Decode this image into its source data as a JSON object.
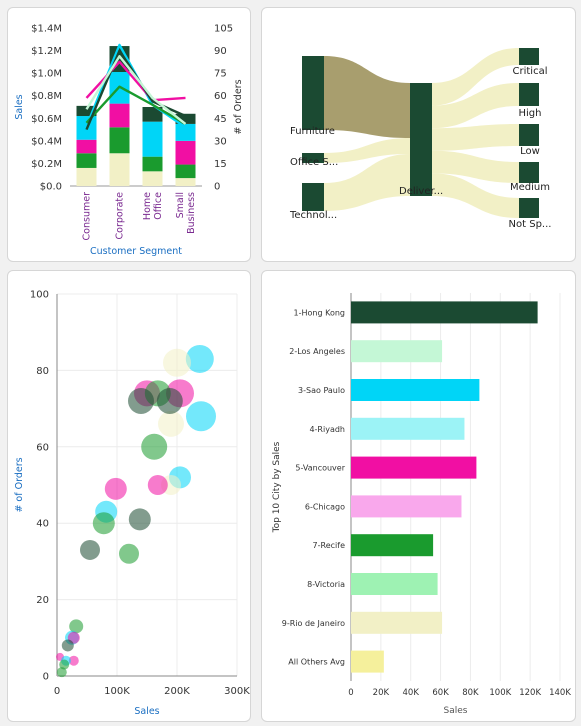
{
  "colors": {
    "dark_green": "#1b4a32",
    "green": "#1a9b2e",
    "mint": "#9ef2b3",
    "light_mint": "#c4f7d6",
    "cyan": "#00d5f7",
    "light_cyan": "#9cf3f6",
    "magenta": "#f10fa3",
    "pink": "#f9a8ec",
    "cream": "#f2f0c6",
    "yellow": "#f5f09c",
    "axis_blue": "#1b6fc2",
    "purple": "#7a2a90",
    "sankey_tan": "#a89e6e"
  },
  "chart_data": [
    {
      "type": "bar",
      "subtype": "stacked-bar-with-lines",
      "xlabel": "Customer Segment",
      "ylabel": "Sales",
      "y2label": "# of Orders",
      "categories": [
        "Consumer",
        "Corporate",
        "Home Office",
        "Small Business"
      ],
      "ylim": [
        0,
        1.4
      ],
      "yticks": [
        "$0.0",
        "$0.2M",
        "$0.4M",
        "$0.6M",
        "$0.8M",
        "$1.0M",
        "$1.2M",
        "$1.4M"
      ],
      "y2lim": [
        0,
        105
      ],
      "y2ticks": [
        "0",
        "15",
        "30",
        "45",
        "60",
        "75",
        "90",
        "105"
      ],
      "stack_colors": [
        "#f2f0c6",
        "#1a9b2e",
        "#f10fa3",
        "#00d5f7",
        "#1b4a32"
      ],
      "stacks": [
        [
          0.16,
          0.13,
          0.12,
          0.21,
          0.09
        ],
        [
          0.29,
          0.23,
          0.21,
          0.28,
          0.23
        ],
        [
          0.13,
          0.13,
          0.0,
          0.31,
          0.13
        ],
        [
          0.07,
          0.12,
          0.21,
          0.15,
          0.09
        ]
      ],
      "series": [
        {
          "color": "#00d5f7",
          "values": [
            0.53,
            1.25,
            0.72,
            0.52
          ]
        },
        {
          "color": "#f10fa3",
          "values": [
            0.78,
            1.1,
            0.76,
            0.78
          ]
        },
        {
          "color": "#1a9b2e",
          "values": [
            0.56,
            0.88,
            0.72,
            0.55
          ]
        },
        {
          "color": "#1b4a32",
          "values": [
            0.5,
            1.2,
            0.75,
            0.62
          ]
        },
        {
          "color": "#c4f7d6",
          "values": [
            0.68,
            1.15,
            0.78,
            0.55
          ]
        }
      ]
    },
    {
      "type": "sankey",
      "nodes_left": [
        "Furniture",
        "Office S...",
        "Technol..."
      ],
      "node_middle": "Deliver...",
      "nodes_right": [
        "Critical",
        "High",
        "Low",
        "Medium",
        "Not Sp..."
      ]
    },
    {
      "type": "scatter",
      "xlabel": "Sales",
      "ylabel": "# of Orders",
      "xlim": [
        0,
        300000
      ],
      "ylim": [
        0,
        100
      ],
      "xticks": [
        "0",
        "100K",
        "200K",
        "300K"
      ],
      "yticks": [
        "0",
        "20",
        "40",
        "60",
        "80",
        "100"
      ],
      "points": [
        {
          "x": 238000,
          "y": 83,
          "r": 14,
          "color": "#00d5f7"
        },
        {
          "x": 200000,
          "y": 82,
          "r": 14,
          "color": "#f2f0c6"
        },
        {
          "x": 240000,
          "y": 68,
          "r": 15,
          "color": "#00d5f7"
        },
        {
          "x": 190000,
          "y": 66,
          "r": 13,
          "color": "#f2f0c6"
        },
        {
          "x": 150000,
          "y": 74,
          "r": 13,
          "color": "#f10fa3"
        },
        {
          "x": 205000,
          "y": 74,
          "r": 14,
          "color": "#f10fa3"
        },
        {
          "x": 168000,
          "y": 74,
          "r": 13,
          "color": "#1a9b2e"
        },
        {
          "x": 140000,
          "y": 72,
          "r": 13,
          "color": "#1b4a32"
        },
        {
          "x": 188000,
          "y": 72,
          "r": 13,
          "color": "#1b4a32"
        },
        {
          "x": 162000,
          "y": 60,
          "r": 13,
          "color": "#1a9b2e"
        },
        {
          "x": 205000,
          "y": 52,
          "r": 11,
          "color": "#00d5f7"
        },
        {
          "x": 190000,
          "y": 50,
          "r": 10,
          "color": "#f2f0c6"
        },
        {
          "x": 168000,
          "y": 50,
          "r": 10,
          "color": "#f10fa3"
        },
        {
          "x": 98000,
          "y": 49,
          "r": 11,
          "color": "#f10fa3"
        },
        {
          "x": 82000,
          "y": 43,
          "r": 11,
          "color": "#00d5f7"
        },
        {
          "x": 138000,
          "y": 41,
          "r": 11,
          "color": "#1b4a32"
        },
        {
          "x": 78000,
          "y": 40,
          "r": 11,
          "color": "#1a9b2e"
        },
        {
          "x": 55000,
          "y": 33,
          "r": 10,
          "color": "#1b4a32"
        },
        {
          "x": 120000,
          "y": 32,
          "r": 10,
          "color": "#1a9b2e"
        },
        {
          "x": 32000,
          "y": 13,
          "r": 7,
          "color": "#1a9b2e"
        },
        {
          "x": 25000,
          "y": 10,
          "r": 7,
          "color": "#00d5f7"
        },
        {
          "x": 28000,
          "y": 10,
          "r": 6,
          "color": "#f10fa3"
        },
        {
          "x": 18000,
          "y": 8,
          "r": 6,
          "color": "#1b4a32"
        },
        {
          "x": 5000,
          "y": 5,
          "r": 4,
          "color": "#f10fa3"
        },
        {
          "x": 28000,
          "y": 4,
          "r": 5,
          "color": "#f10fa3"
        },
        {
          "x": 15000,
          "y": 4,
          "r": 5,
          "color": "#00d5f7"
        },
        {
          "x": 12000,
          "y": 3,
          "r": 5,
          "color": "#1a9b2e"
        },
        {
          "x": 8000,
          "y": 1,
          "r": 5,
          "color": "#1a9b2e"
        }
      ]
    },
    {
      "type": "bar",
      "orientation": "horizontal",
      "ylabel": "Top 10 City by Sales",
      "xlabel": "Sales",
      "xlim": [
        0,
        140000
      ],
      "xticks": [
        "0",
        "20K",
        "40K",
        "60K",
        "80K",
        "100K",
        "120K",
        "140K"
      ],
      "categories": [
        "1-Hong Kong",
        "2-Los Angeles",
        "3-Sao Paulo",
        "4-Riyadh",
        "5-Vancouver",
        "6-Chicago",
        "7-Recife",
        "8-Victoria",
        "9-Rio de Janeiro",
        "All Others Avg"
      ],
      "values": [
        125000,
        61000,
        86000,
        76000,
        84000,
        74000,
        55000,
        58000,
        61000,
        22000
      ],
      "colors": [
        "#1b4a32",
        "#c4f7d6",
        "#00d5f7",
        "#9cf3f6",
        "#f10fa3",
        "#f9a8ec",
        "#1a9b2e",
        "#9ef2b3",
        "#f2f0c6",
        "#f5f09c"
      ]
    }
  ]
}
